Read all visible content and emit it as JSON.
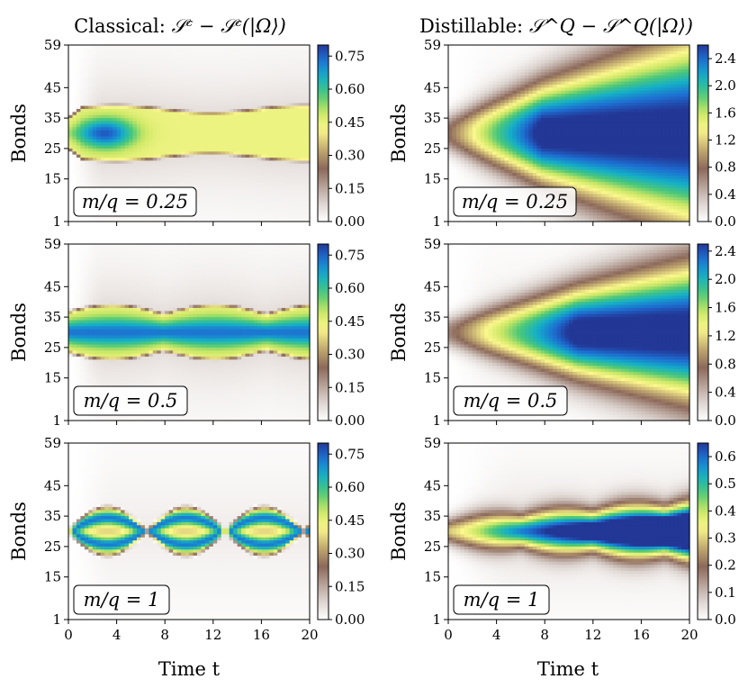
{
  "chart_data": {
    "type": "heatmap",
    "x_label": "Time t",
    "y_label": "Bonds",
    "x_ticks": [
      0,
      4,
      8,
      12,
      16,
      20
    ],
    "y_ticks": [
      1,
      15,
      25,
      35,
      45,
      59
    ],
    "xlim": [
      0,
      20
    ],
    "ylim": [
      1,
      59
    ],
    "colormap": "terrain_r",
    "columns": [
      {
        "title": "Classical: 𝒮ᶜ − 𝒮ᶜ(|Ω⟩)",
        "kind": "classical"
      },
      {
        "title": "Distillable: 𝒮^Q − 𝒮^Q(|Ω⟩)",
        "kind": "distillable"
      }
    ],
    "panels": [
      {
        "label": "m/q = 0.25",
        "col": 0,
        "row": 0,
        "vmin": 0,
        "vmax": 0.8,
        "colorbar_ticks": [
          "0.00",
          "0.15",
          "0.30",
          "0.45",
          "0.60",
          "0.75"
        ]
      },
      {
        "label": "m/q = 0.25",
        "col": 1,
        "row": 0,
        "vmin": 0,
        "vmax": 2.6,
        "colorbar_ticks": [
          "0.0",
          "0.4",
          "0.8",
          "1.2",
          "1.6",
          "2.0",
          "2.4"
        ]
      },
      {
        "label": "m/q = 0.5",
        "col": 0,
        "row": 1,
        "vmin": 0,
        "vmax": 0.8,
        "colorbar_ticks": [
          "0.00",
          "0.15",
          "0.30",
          "0.45",
          "0.60",
          "0.75"
        ]
      },
      {
        "label": "m/q = 0.5",
        "col": 1,
        "row": 1,
        "vmin": 0,
        "vmax": 2.5,
        "colorbar_ticks": [
          "0.0",
          "0.4",
          "0.8",
          "1.2",
          "1.6",
          "2.0",
          "2.4"
        ]
      },
      {
        "label": "m/q = 1",
        "col": 0,
        "row": 2,
        "vmin": 0,
        "vmax": 0.8,
        "colorbar_ticks": [
          "0.00",
          "0.15",
          "0.30",
          "0.45",
          "0.60",
          "0.75"
        ]
      },
      {
        "label": "m/q = 1",
        "col": 1,
        "row": 2,
        "vmin": 0,
        "vmax": 0.65,
        "colorbar_ticks": [
          "0.0",
          "0.1",
          "0.2",
          "0.3",
          "0.4",
          "0.5",
          "0.6"
        ]
      }
    ]
  },
  "text": {
    "title_classical": "Classical: ",
    "title_classical_math": "𝒮ᶜ − 𝒮ᶜ(|Ω⟩)",
    "title_distillable": "Distillable: ",
    "title_distillable_math": "𝒮^Q − 𝒮^Q(|Ω⟩)",
    "xlabel": "Time t",
    "ylabel": "Bonds"
  }
}
